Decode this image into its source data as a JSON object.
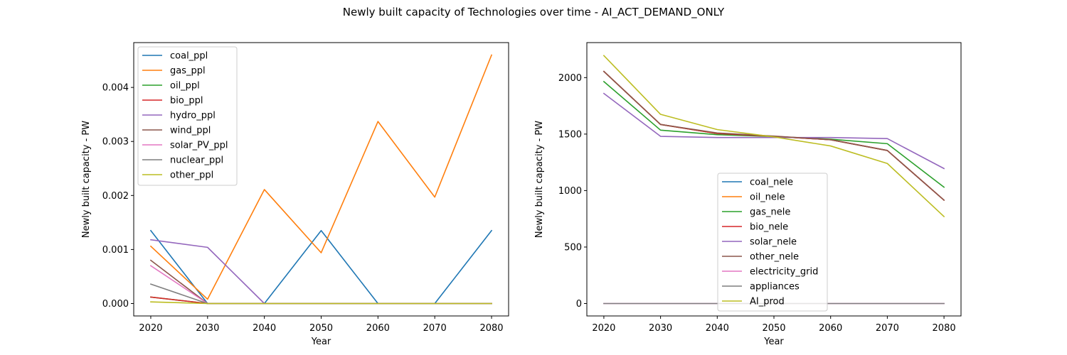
{
  "suptitle": "Newly built capacity of Technologies over time - AI_ACT_DEMAND_ONLY",
  "chart_data": [
    {
      "type": "line",
      "xlabel": "Year",
      "ylabel": "Newly built capacity - PW",
      "xlim": [
        2017,
        2083
      ],
      "ylim": [
        -0.00023,
        0.00483
      ],
      "x_ticks": [
        "2020",
        "2030",
        "2040",
        "2050",
        "2060",
        "2070",
        "2080"
      ],
      "y_ticks": [
        "0.000",
        "0.001",
        "0.002",
        "0.003",
        "0.004"
      ],
      "y_tick_values": [
        0,
        0.001,
        0.002,
        0.003,
        0.004
      ],
      "legend_position": "upper-left",
      "x": [
        2020,
        2030,
        2040,
        2050,
        2060,
        2070,
        2080
      ],
      "series": [
        {
          "name": "coal_ppl",
          "color": "#1f77b4",
          "values": [
            0.00135,
            0.0,
            0.0,
            0.00135,
            0.0,
            0.0,
            0.00135
          ]
        },
        {
          "name": "gas_ppl",
          "color": "#ff7f0e",
          "values": [
            0.00106,
            8e-05,
            0.00211,
            0.00094,
            0.00337,
            0.00197,
            0.0046
          ]
        },
        {
          "name": "oil_ppl",
          "color": "#2ca02c",
          "values": [
            0.00012,
            0.0,
            0.0,
            0.0,
            0.0,
            0.0,
            0.0
          ]
        },
        {
          "name": "bio_ppl",
          "color": "#d62728",
          "values": [
            0.00012,
            0.0,
            0.0,
            0.0,
            0.0,
            0.0,
            0.0
          ]
        },
        {
          "name": "hydro_ppl",
          "color": "#9467bd",
          "values": [
            0.00118,
            0.00104,
            0.0,
            0.0,
            0.0,
            0.0,
            0.0
          ]
        },
        {
          "name": "wind_ppl",
          "color": "#8c564b",
          "values": [
            0.0008,
            0.0,
            0.0,
            0.0,
            0.0,
            0.0,
            0.0
          ]
        },
        {
          "name": "solar_PV_ppl",
          "color": "#e377c2",
          "values": [
            0.0007,
            0.0,
            0.0,
            0.0,
            0.0,
            0.0,
            0.0
          ]
        },
        {
          "name": "nuclear_ppl",
          "color": "#7f7f7f",
          "values": [
            0.00036,
            0.0,
            0.0,
            0.0,
            0.0,
            0.0,
            0.0
          ]
        },
        {
          "name": "other_ppl",
          "color": "#bcbd22",
          "values": [
            3e-05,
            0.0,
            0.0,
            0.0,
            0.0,
            0.0,
            0.0
          ]
        }
      ]
    },
    {
      "type": "line",
      "xlabel": "Year",
      "ylabel": "Newly built capacity - PW",
      "xlim": [
        2017,
        2083
      ],
      "ylim": [
        -110,
        2310
      ],
      "x_ticks": [
        "2020",
        "2030",
        "2040",
        "2050",
        "2060",
        "2070",
        "2080"
      ],
      "y_ticks": [
        "0",
        "500",
        "1000",
        "1500",
        "2000"
      ],
      "y_tick_values": [
        0,
        500,
        1000,
        1500,
        2000
      ],
      "legend_position": "lower-center",
      "x": [
        2020,
        2030,
        2040,
        2050,
        2060,
        2070,
        2080
      ],
      "series": [
        {
          "name": "coal_nele",
          "color": "#1f77b4",
          "values": [
            2055,
            1585,
            1505,
            1480,
            1450,
            1355,
            915
          ]
        },
        {
          "name": "oil_nele",
          "color": "#ff7f0e",
          "values": [
            2055,
            1585,
            1505,
            1480,
            1450,
            1355,
            915
          ]
        },
        {
          "name": "gas_nele",
          "color": "#2ca02c",
          "values": [
            1965,
            1535,
            1495,
            1478,
            1455,
            1415,
            1030
          ]
        },
        {
          "name": "bio_nele",
          "color": "#d62728",
          "values": [
            2055,
            1585,
            1505,
            1480,
            1450,
            1355,
            915
          ]
        },
        {
          "name": "solar_nele",
          "color": "#9467bd",
          "values": [
            1860,
            1480,
            1470,
            1470,
            1470,
            1460,
            1195
          ]
        },
        {
          "name": "other_nele",
          "color": "#8c564b",
          "values": [
            2055,
            1585,
            1510,
            1482,
            1450,
            1355,
            915
          ]
        },
        {
          "name": "electricity_grid",
          "color": "#e377c2",
          "values": [
            0,
            0,
            0,
            0,
            0,
            0,
            0
          ]
        },
        {
          "name": "appliances",
          "color": "#7f7f7f",
          "values": [
            0,
            0,
            0,
            0,
            0,
            0,
            0
          ]
        },
        {
          "name": "AI_prod",
          "color": "#bcbd22",
          "values": [
            2195,
            1675,
            1540,
            1475,
            1395,
            1240,
            770
          ]
        }
      ]
    }
  ]
}
